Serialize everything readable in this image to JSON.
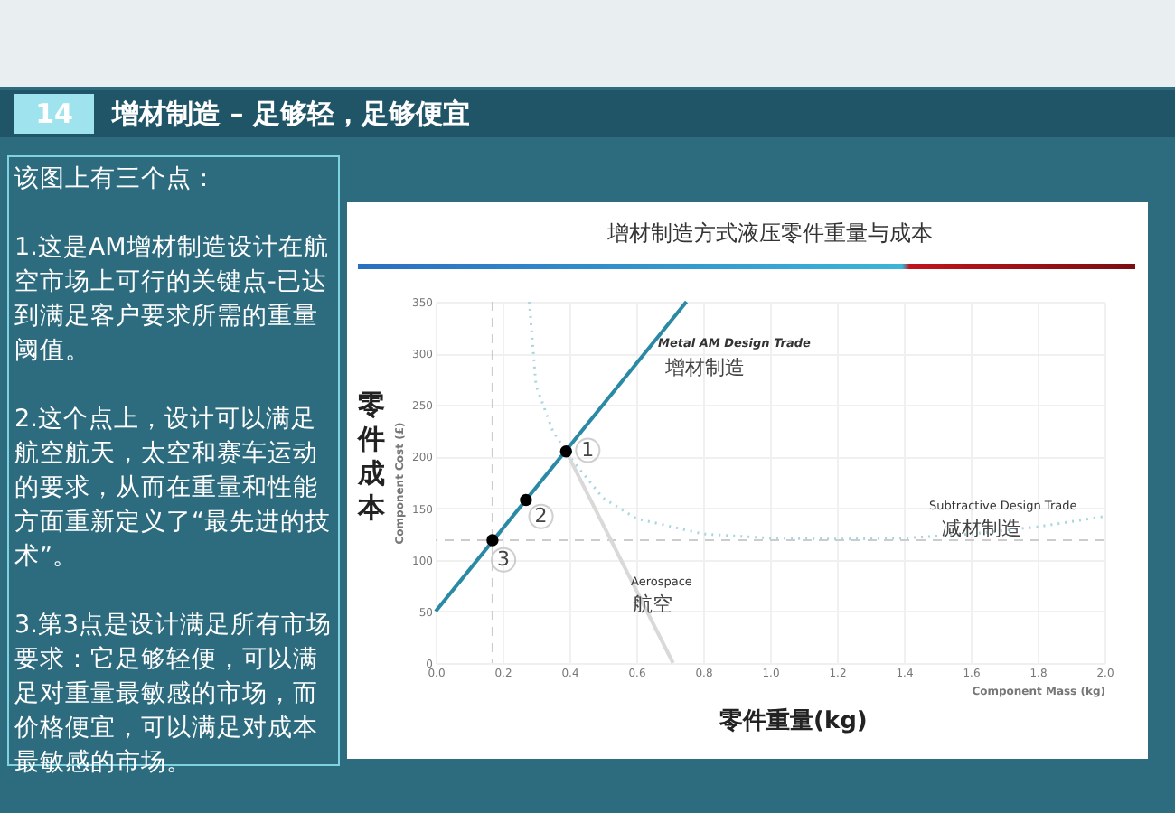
{
  "chart_data": {
    "type": "line",
    "title": "增材制造方式液压零件重量与成本",
    "xlabel": "Component Mass (kg)",
    "ylabel": "Component Cost (£)",
    "xlim": [
      0,
      2
    ],
    "xticks": [
      {
        "value": 0,
        "label": "0.0"
      },
      0.2,
      0.4,
      0.6,
      0.8,
      {
        "value": 1,
        "label": "1.0"
      },
      1.2,
      1.4,
      1.6,
      1.8,
      {
        "value": 2,
        "label": "2.0"
      }
    ],
    "ylim": [
      0,
      350
    ],
    "yticks": [
      0,
      50,
      100,
      150,
      200,
      250,
      300,
      350
    ],
    "grid": true,
    "series": [
      {
        "color": "#2a8aa5",
        "line_style": "solid",
        "x": [
          0,
          0.75
        ],
        "values": [
          50,
          350
        ]
      },
      {
        "color": "#a8d6de",
        "line_style": "dotted",
        "x": [
          0.28,
          0.3,
          0.35,
          0.4,
          0.5,
          0.6,
          0.8,
          1.0,
          1.2,
          1.4,
          1.6,
          1.8,
          2.0
        ],
        "values": [
          350,
          269,
          225,
          200,
          160,
          140,
          125,
          121,
          120,
          121,
          125,
          132,
          142
        ]
      },
      {
        "color": "#d9d9d9",
        "line_style": "solid",
        "x": [
          0.39,
          0.71
        ],
        "values": [
          205,
          0
        ]
      },
      {
        "type": "scatter",
        "color": "#000000",
        "marker": "circle",
        "x": [
          0.17,
          0.27,
          0.39
        ],
        "values": [
          119,
          158,
          205
        ]
      }
    ],
    "ref_lines": [
      {
        "axis": "x",
        "value": 0.17,
        "color": "#cccccc",
        "line_style": "dashed"
      },
      {
        "axis": "y",
        "value": 119,
        "color": "#cccccc",
        "line_style": "dashed"
      }
    ],
    "annotations": [
      "14",
      "增材制造 – 足够轻，足够便宜",
      "该图上有三个点：\n\n1.这是AM增材制造设计在航空市场上可行的关键点-已达到满足客户要求所需的重量阈值。\n\n2.这个点上，设计可以满足航空航天，太空和赛车运动的要求，从而在重量和性能方面重新定义了“最先进的技术”。\n\n3.第3点是设计满足所有市场要求：它足够轻便，可以满足对重量最敏感的市场，而价格便宜，可以满足对成本最敏感的市场。",
      "零件成本",
      "零件重量(kg)",
      "Metal AM Design Trade",
      "增材制造",
      "Subtractive Design Trade",
      "减材制造",
      "Aerospace",
      "航空",
      {
        "text": "1",
        "x": 0.455,
        "y": 206
      },
      {
        "text": "2",
        "x": 0.315,
        "y": 142
      },
      {
        "text": "3",
        "x": 0.203,
        "y": 100
      }
    ]
  }
}
